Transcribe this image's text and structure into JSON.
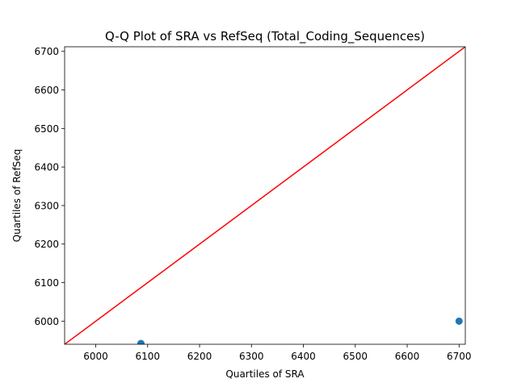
{
  "chart_data": {
    "type": "scatter",
    "title": "Q-Q Plot of SRA vs RefSeq (Total_Coding_Sequences)",
    "xlabel": "Quartiles of SRA",
    "ylabel": "Quartiles of RefSeq",
    "xlim": [
      5940,
      6712
    ],
    "ylim": [
      5940,
      6712
    ],
    "xticks": [
      6000,
      6100,
      6200,
      6300,
      6400,
      6500,
      6600,
      6700
    ],
    "yticks": [
      6000,
      6100,
      6200,
      6300,
      6400,
      6500,
      6600,
      6700
    ],
    "grid": false,
    "points": [
      {
        "x": 6087,
        "y": 5942
      },
      {
        "x": 6700,
        "y": 6000
      }
    ],
    "point_color": "#1f77b4",
    "reference_line": {
      "from": [
        5940,
        5940
      ],
      "to": [
        6712,
        6712
      ],
      "color": "#ff0000"
    }
  }
}
